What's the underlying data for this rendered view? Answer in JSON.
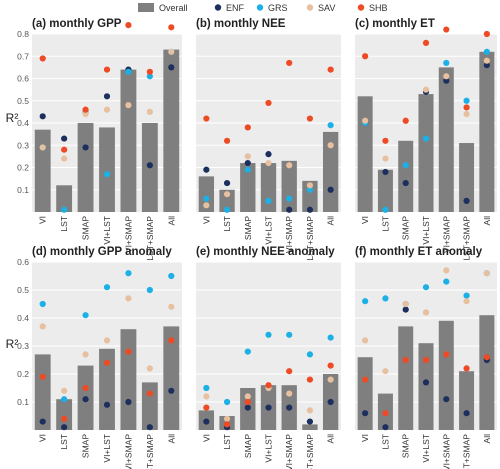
{
  "legend": [
    {
      "key": "overall",
      "label": "Overall",
      "kind": "bar"
    },
    {
      "key": "ENF",
      "label": "ENF",
      "kind": "dot"
    },
    {
      "key": "GRS",
      "label": "GRS",
      "kind": "dot"
    },
    {
      "key": "SAV",
      "label": "SAV",
      "kind": "dot"
    },
    {
      "key": "SHB",
      "label": "SHB",
      "kind": "dot"
    }
  ],
  "colors": {
    "overall": "#7f7f7f",
    "ENF": "#1c2f5e",
    "GRS": "#1bb0e6",
    "SAV": "#e7c0a0",
    "SHB": "#ee4a24",
    "panel_bg": "#ececec",
    "grid": "#ffffff"
  },
  "y_label": "R²",
  "chart_data": [
    {
      "type": "bar",
      "title": "(a) monthly GPP",
      "categories": [
        "VI",
        "LST",
        "SMAP",
        "VI+LST",
        "VI+SMAP",
        "LST+SMAP",
        "All"
      ],
      "ylim": [
        0,
        0.8
      ],
      "yticks": [
        0.1,
        0.2,
        0.3,
        0.4,
        0.5,
        0.6,
        0.7,
        0.8
      ],
      "ytick_labels": [
        "0.1",
        "0.2",
        "0.3",
        "0.4",
        "0.5",
        "0.6",
        "0.7",
        "0.8"
      ],
      "grid": true,
      "series": [
        {
          "name": "Overall",
          "kind": "bar",
          "values": [
            0.37,
            0.12,
            0.4,
            0.38,
            0.64,
            0.4,
            0.73
          ]
        },
        {
          "name": "ENF",
          "kind": "dot",
          "values": [
            0.43,
            0.33,
            0.29,
            0.52,
            0.64,
            0.21,
            0.65
          ]
        },
        {
          "name": "GRS",
          "kind": "dot",
          "values": [
            0.29,
            0.01,
            0.45,
            0.17,
            0.63,
            0.61,
            0.72
          ]
        },
        {
          "name": "SAV",
          "kind": "dot",
          "values": [
            0.29,
            0.24,
            0.44,
            0.46,
            0.48,
            0.45,
            0.72
          ]
        },
        {
          "name": "SHB",
          "kind": "dot",
          "values": [
            0.69,
            0.28,
            0.46,
            0.64,
            0.84,
            0.63,
            0.83
          ]
        }
      ]
    },
    {
      "type": "bar",
      "title": "(b) monthly NEE",
      "categories": [
        "VI",
        "LST",
        "SMAP",
        "VI+LST",
        "VI+SMAP",
        "LST+SMAP",
        "All"
      ],
      "ylim": [
        0,
        0.8
      ],
      "yticks": [
        0.1,
        0.2,
        0.3,
        0.4,
        0.5,
        0.6,
        0.7,
        0.8
      ],
      "ytick_labels": [],
      "grid": true,
      "series": [
        {
          "name": "Overall",
          "kind": "bar",
          "values": [
            0.16,
            0.1,
            0.22,
            0.22,
            0.23,
            0.14,
            0.36
          ]
        },
        {
          "name": "ENF",
          "kind": "dot",
          "values": [
            0.19,
            0.13,
            0.22,
            0.26,
            0.01,
            0.01,
            0.1
          ]
        },
        {
          "name": "GRS",
          "kind": "dot",
          "values": [
            0.06,
            0.01,
            0.19,
            0.05,
            0.06,
            0.1,
            0.39
          ]
        },
        {
          "name": "SAV",
          "kind": "dot",
          "values": [
            0.03,
            0.08,
            0.25,
            0.22,
            0.21,
            0.12,
            0.3
          ]
        },
        {
          "name": "SHB",
          "kind": "dot",
          "values": [
            0.42,
            0.32,
            0.38,
            0.49,
            0.67,
            0.42,
            0.64
          ]
        }
      ]
    },
    {
      "type": "bar",
      "title": "(c) monthly ET",
      "categories": [
        "VI",
        "LST",
        "SMAP",
        "VI+LST",
        "VI+SMAP",
        "LST+SMAP",
        "All"
      ],
      "ylim": [
        0,
        0.8
      ],
      "yticks": [
        0.1,
        0.2,
        0.3,
        0.4,
        0.5,
        0.6,
        0.7,
        0.8
      ],
      "ytick_labels": [],
      "grid": true,
      "series": [
        {
          "name": "Overall",
          "kind": "bar",
          "values": [
            0.52,
            0.19,
            0.32,
            0.53,
            0.65,
            0.31,
            0.72
          ]
        },
        {
          "name": "ENF",
          "kind": "dot",
          "values": [
            0.4,
            0.18,
            0.13,
            0.54,
            0.59,
            0.05,
            0.66
          ]
        },
        {
          "name": "GRS",
          "kind": "dot",
          "values": [
            0.4,
            0.01,
            0.21,
            0.33,
            0.67,
            0.5,
            0.72
          ]
        },
        {
          "name": "SAV",
          "kind": "dot",
          "values": [
            0.41,
            0.24,
            0.41,
            0.55,
            0.61,
            0.44,
            0.68
          ]
        },
        {
          "name": "SHB",
          "kind": "dot",
          "values": [
            0.7,
            0.32,
            0.41,
            0.76,
            0.82,
            0.47,
            0.8
          ]
        }
      ]
    },
    {
      "type": "bar",
      "title": "(d) monthly GPP anomaly",
      "categories": [
        "VI",
        "LST",
        "SMAP",
        "VI+LST",
        "VI+SMAP",
        "LST+SMAP",
        "All"
      ],
      "ylim": [
        0,
        0.6
      ],
      "yticks": [
        0.1,
        0.2,
        0.3,
        0.4,
        0.5,
        0.6
      ],
      "ytick_labels": [
        "0.1",
        "0.2",
        "0.3",
        "0.4",
        "0.5",
        "0.6"
      ],
      "grid": true,
      "series": [
        {
          "name": "Overall",
          "kind": "bar",
          "values": [
            0.27,
            0.11,
            0.23,
            0.29,
            0.36,
            0.17,
            0.37
          ]
        },
        {
          "name": "ENF",
          "kind": "dot",
          "values": [
            0.03,
            0.01,
            0.11,
            0.09,
            0.1,
            0.01,
            0.14
          ]
        },
        {
          "name": "GRS",
          "kind": "dot",
          "values": [
            0.45,
            0.11,
            0.41,
            0.51,
            0.56,
            0.5,
            0.55
          ]
        },
        {
          "name": "SAV",
          "kind": "dot",
          "values": [
            0.37,
            0.14,
            0.27,
            0.32,
            0.47,
            0.22,
            0.44
          ]
        },
        {
          "name": "SHB",
          "kind": "dot",
          "values": [
            0.19,
            0.04,
            0.15,
            0.24,
            0.28,
            0.13,
            0.32
          ]
        }
      ]
    },
    {
      "type": "bar",
      "title": "(e) monthly NEE anomaly",
      "categories": [
        "VI",
        "LST",
        "SMAP",
        "VI+LST",
        "VI+SMAP",
        "LST+SMAP",
        "All"
      ],
      "ylim": [
        0,
        0.6
      ],
      "yticks": [
        0.1,
        0.2,
        0.3,
        0.4,
        0.5,
        0.6
      ],
      "ytick_labels": [],
      "grid": true,
      "series": [
        {
          "name": "Overall",
          "kind": "bar",
          "values": [
            0.07,
            0.05,
            0.15,
            0.16,
            0.16,
            0.02,
            0.2
          ]
        },
        {
          "name": "ENF",
          "kind": "dot",
          "values": [
            0.03,
            0.01,
            0.08,
            0.08,
            0.08,
            0.03,
            0.1
          ]
        },
        {
          "name": "GRS",
          "kind": "dot",
          "values": [
            0.15,
            0.1,
            0.28,
            0.34,
            0.34,
            0.27,
            0.33
          ]
        },
        {
          "name": "SAV",
          "kind": "dot",
          "values": [
            0.12,
            0.04,
            0.12,
            0.15,
            0.13,
            0.07,
            0.18
          ]
        },
        {
          "name": "SHB",
          "kind": "dot",
          "values": [
            0.08,
            0.02,
            0.1,
            0.16,
            0.21,
            0.18,
            0.23
          ]
        }
      ]
    },
    {
      "type": "bar",
      "title": "(f) monthly ET anomaly",
      "categories": [
        "VI",
        "LST",
        "SMAP",
        "VI+LST",
        "VI+SMAP",
        "LST+SMAP",
        "All"
      ],
      "ylim": [
        0,
        0.6
      ],
      "yticks": [
        0.1,
        0.2,
        0.3,
        0.4,
        0.5,
        0.6
      ],
      "ytick_labels": [],
      "grid": true,
      "series": [
        {
          "name": "Overall",
          "kind": "bar",
          "values": [
            0.26,
            0.13,
            0.37,
            0.31,
            0.39,
            0.21,
            0.41
          ]
        },
        {
          "name": "ENF",
          "kind": "dot",
          "values": [
            0.06,
            0.01,
            0.43,
            0.17,
            0.11,
            0.06,
            0.25
          ]
        },
        {
          "name": "GRS",
          "kind": "dot",
          "values": [
            0.46,
            0.47,
            0.45,
            0.51,
            0.53,
            0.48,
            0.56
          ]
        },
        {
          "name": "SAV",
          "kind": "dot",
          "values": [
            0.32,
            0.21,
            0.45,
            0.42,
            0.57,
            0.46,
            0.56
          ]
        },
        {
          "name": "SHB",
          "kind": "dot",
          "values": [
            0.18,
            0.06,
            0.25,
            0.25,
            0.27,
            0.22,
            0.26
          ]
        }
      ]
    }
  ]
}
